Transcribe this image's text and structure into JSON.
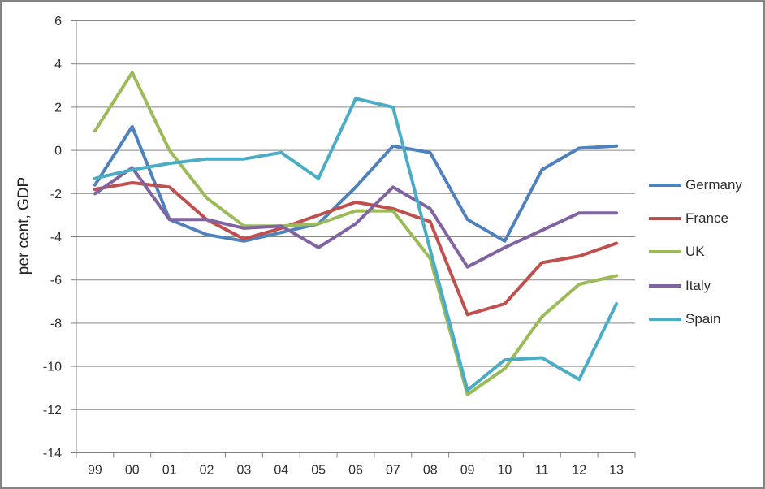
{
  "chart_data": {
    "type": "line",
    "title": "",
    "xlabel": "",
    "ylabel": "per cent, GDP",
    "ylim": [
      -14,
      6
    ],
    "y_tick_step": 2,
    "grid": true,
    "legend_position": "right",
    "categories": [
      "99",
      "00",
      "01",
      "02",
      "03",
      "04",
      "05",
      "06",
      "07",
      "08",
      "09",
      "10",
      "11",
      "12",
      "13"
    ],
    "series": [
      {
        "name": "Germany",
        "color": "#4F81BD",
        "values": [
          -1.6,
          1.1,
          -3.2,
          -3.9,
          -4.2,
          -3.8,
          -3.4,
          -1.7,
          0.2,
          -0.1,
          -3.2,
          -4.2,
          -0.9,
          0.1,
          0.2
        ]
      },
      {
        "name": "France",
        "color": "#C0504D",
        "values": [
          -1.8,
          -1.5,
          -1.7,
          -3.2,
          -4.1,
          -3.6,
          -3.0,
          -2.4,
          -2.7,
          -3.3,
          -7.6,
          -7.1,
          -5.2,
          -4.9,
          -4.3
        ]
      },
      {
        "name": "UK",
        "color": "#9BBB59",
        "values": [
          0.9,
          3.6,
          0.0,
          -2.2,
          -3.5,
          -3.5,
          -3.4,
          -2.8,
          -2.8,
          -5.0,
          -11.3,
          -10.1,
          -7.7,
          -6.2,
          -5.8
        ]
      },
      {
        "name": "Italy",
        "color": "#8064A2",
        "values": [
          -2.0,
          -0.8,
          -3.2,
          -3.2,
          -3.6,
          -3.5,
          -4.5,
          -3.4,
          -1.7,
          -2.7,
          -5.4,
          -4.5,
          -3.7,
          -2.9,
          -2.9
        ]
      },
      {
        "name": "Spain",
        "color": "#4BACC6",
        "values": [
          -1.3,
          -0.9,
          -0.6,
          -0.4,
          -0.4,
          -0.1,
          -1.3,
          2.4,
          2.0,
          -4.6,
          -11.1,
          -9.7,
          -9.6,
          -10.6,
          -7.1
        ]
      }
    ]
  },
  "axes": {
    "y_ticks": [
      "6",
      "4",
      "2",
      "0",
      "-2",
      "-4",
      "-6",
      "-8",
      "-10",
      "-12",
      "-14"
    ]
  },
  "colors": {
    "background": "#FFFFFF",
    "frame_border": "#848484",
    "gridline": "#878787",
    "axis": "#808080",
    "tick_text": "#303030"
  }
}
